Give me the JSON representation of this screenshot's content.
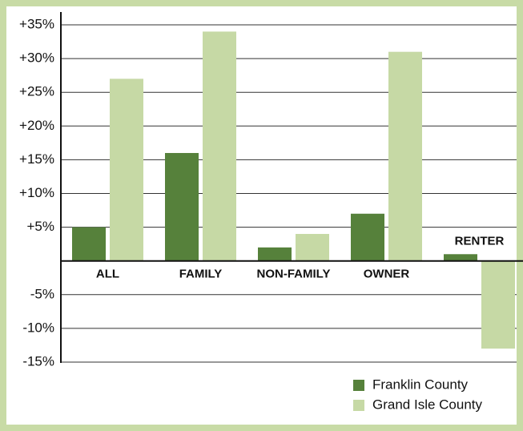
{
  "chart_data": {
    "type": "bar",
    "categories": [
      "ALL",
      "FAMILY",
      "NON-FAMILY",
      "OWNER",
      "RENTER"
    ],
    "series": [
      {
        "name": "Franklin County",
        "color": "#56813b",
        "values": [
          5,
          16,
          2,
          7,
          1
        ]
      },
      {
        "name": "Grand Isle County",
        "color": "#c6d9a5",
        "values": [
          27,
          34,
          4,
          31,
          -13
        ]
      }
    ],
    "ylim": [
      -15,
      35
    ],
    "yticks": [
      {
        "value": -15,
        "label": "-15%"
      },
      {
        "value": -10,
        "label": "-10%"
      },
      {
        "value": -5,
        "label": "-5%"
      },
      {
        "value": 5,
        "label": "+5%"
      },
      {
        "value": 10,
        "label": "+10%"
      },
      {
        "value": 15,
        "label": "+15%"
      },
      {
        "value": 20,
        "label": "+20%"
      },
      {
        "value": 25,
        "label": "+25%"
      },
      {
        "value": 30,
        "label": "+30%"
      },
      {
        "value": 35,
        "label": "+35%"
      }
    ],
    "grid": true,
    "legend": "bottom-right"
  }
}
